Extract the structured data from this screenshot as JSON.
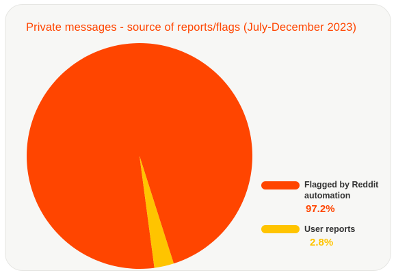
{
  "colors": {
    "background": "#f7f7f5",
    "title": "#ff4500",
    "automation": "#ff4500",
    "user_reports": "#ffc400",
    "legend_text": "#333333"
  },
  "chart_data": {
    "type": "pie",
    "title": "Private messages - source of reports/flags (July-December 2023)",
    "legend_placement": "right",
    "slices": [
      {
        "label_line1": "Flagged by Reddit",
        "label_line2": "automation",
        "value": 97.2,
        "value_label": "97.2%",
        "color": "#ff4500"
      },
      {
        "label_line1": "User reports",
        "label_line2": "",
        "value": 2.8,
        "value_label": "2.8%",
        "color": "#ffc400"
      }
    ]
  }
}
